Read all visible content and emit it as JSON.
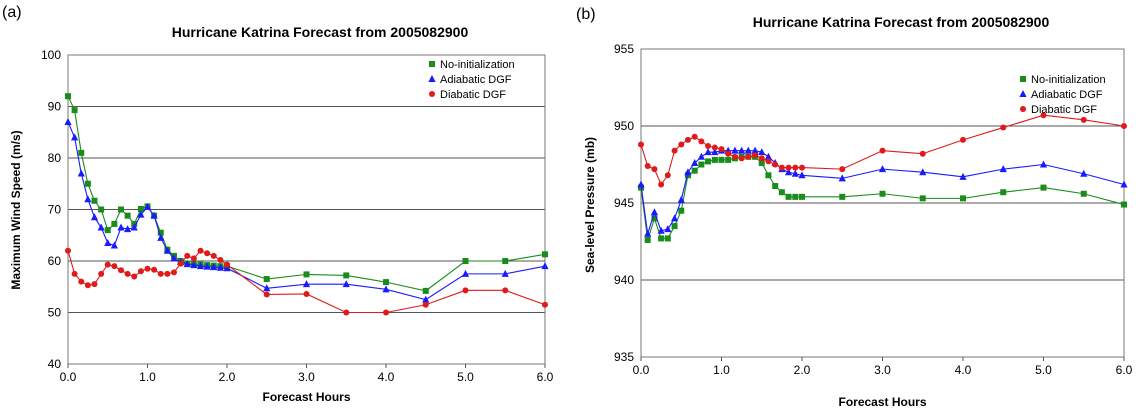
{
  "chart_data": [
    {
      "type": "line",
      "panel_label": "(a)",
      "title": "Hurricane Katrina Forecast from 2005082900",
      "xlabel": "Forecast Hours",
      "ylabel": "Maximum Wind Speed (m/s)",
      "xlim": [
        0,
        6
      ],
      "ylim": [
        40,
        100
      ],
      "x_ticks": [
        0,
        1,
        2,
        3,
        4,
        5,
        6
      ],
      "x_tick_labels": [
        "0.0",
        "1.0",
        "2.0",
        "3.0",
        "4.0",
        "5.0",
        "6.0"
      ],
      "y_ticks": [
        40,
        50,
        60,
        70,
        80,
        90,
        100
      ],
      "y_tick_labels": [
        "40",
        "50",
        "60",
        "70",
        "80",
        "90",
        "100"
      ],
      "grid": "horizontal",
      "legend_position": "top-right",
      "series": [
        {
          "name": "No-initialization",
          "color": "#1a8c1a",
          "marker": "square",
          "x": [
            0,
            0.083,
            0.167,
            0.25,
            0.333,
            0.417,
            0.5,
            0.583,
            0.667,
            0.75,
            0.833,
            0.917,
            1.0,
            1.083,
            1.167,
            1.25,
            1.333,
            1.417,
            1.5,
            1.583,
            1.667,
            1.75,
            1.833,
            1.917,
            2.0,
            2.5,
            3.0,
            3.5,
            4.0,
            4.5,
            5.0,
            5.5,
            6.0
          ],
          "y": [
            92,
            89.3,
            81,
            75,
            71.7,
            70,
            66,
            67.2,
            70,
            68.8,
            67.2,
            70.1,
            70.6,
            68.8,
            65.5,
            62.2,
            61,
            60,
            59.5,
            59.4,
            59.3,
            59.2,
            59.1,
            59.0,
            59.0,
            56.5,
            57.4,
            57.2,
            55.9,
            54.2,
            60.0,
            60.0,
            61.3
          ]
        },
        {
          "name": "Adiabatic DGF",
          "color": "#1a1aff",
          "marker": "triangle",
          "x": [
            0,
            0.083,
            0.167,
            0.25,
            0.333,
            0.417,
            0.5,
            0.583,
            0.667,
            0.75,
            0.833,
            0.917,
            1.0,
            1.083,
            1.167,
            1.25,
            1.333,
            1.417,
            1.5,
            1.583,
            1.667,
            1.75,
            1.833,
            1.917,
            2.0,
            2.5,
            3.0,
            3.5,
            4.0,
            4.5,
            5.0,
            5.5,
            6.0
          ],
          "y": [
            87,
            84,
            77,
            72,
            68.5,
            66.5,
            63.5,
            63,
            66.5,
            66.2,
            66.5,
            69,
            70.5,
            68.8,
            64.5,
            62,
            60.5,
            59.8,
            59.4,
            59.2,
            59.0,
            58.9,
            58.8,
            58.7,
            58.6,
            54.7,
            55.5,
            55.5,
            54.5,
            52.5,
            57.5,
            57.5,
            59.0
          ]
        },
        {
          "name": "Diabatic DGF",
          "color": "#e01a1a",
          "marker": "circle",
          "x": [
            0,
            0.083,
            0.167,
            0.25,
            0.333,
            0.417,
            0.5,
            0.583,
            0.667,
            0.75,
            0.833,
            0.917,
            1.0,
            1.083,
            1.167,
            1.25,
            1.333,
            1.417,
            1.5,
            1.583,
            1.667,
            1.75,
            1.833,
            1.917,
            2.0,
            2.5,
            3.0,
            3.5,
            4.0,
            4.5,
            5.0,
            5.5,
            6.0
          ],
          "y": [
            62,
            57.5,
            56,
            55.3,
            55.5,
            57.5,
            59.3,
            59,
            58.2,
            57.5,
            57,
            58,
            58.5,
            58.3,
            57.5,
            57.5,
            57.8,
            59.5,
            61,
            60.5,
            62,
            61.5,
            61,
            60.2,
            59.3,
            53.5,
            53.6,
            50,
            50,
            51.5,
            54.3,
            54.3,
            51.5
          ]
        }
      ]
    },
    {
      "type": "line",
      "panel_label": "(b)",
      "title": "Hurricane Katrina Forecast from 2005082900",
      "xlabel": "Forecast Hours",
      "ylabel": "Sea-level Pressure (mb)",
      "xlim": [
        0,
        6
      ],
      "ylim": [
        935,
        955
      ],
      "x_ticks": [
        0,
        1,
        2,
        3,
        4,
        5,
        6
      ],
      "x_tick_labels": [
        "0.0",
        "1.0",
        "2.0",
        "3.0",
        "4.0",
        "5.0",
        "6.0"
      ],
      "y_ticks": [
        935,
        940,
        945,
        950,
        955
      ],
      "y_tick_labels": [
        "935",
        "940",
        "945",
        "950",
        "955"
      ],
      "grid": "horizontal",
      "legend_position": "top-right",
      "series": [
        {
          "name": "No-initialization",
          "color": "#1a8c1a",
          "marker": "square",
          "x": [
            0,
            0.083,
            0.167,
            0.25,
            0.333,
            0.417,
            0.5,
            0.583,
            0.667,
            0.75,
            0.833,
            0.917,
            1.0,
            1.083,
            1.167,
            1.25,
            1.333,
            1.417,
            1.5,
            1.583,
            1.667,
            1.75,
            1.833,
            1.917,
            2.0,
            2.5,
            3.0,
            3.5,
            4.0,
            4.5,
            5.0,
            5.5,
            6.0
          ],
          "y": [
            946.0,
            942.6,
            944.0,
            942.7,
            942.7,
            943.5,
            944.5,
            946.8,
            947.1,
            947.5,
            947.7,
            947.8,
            947.8,
            947.8,
            947.9,
            948.0,
            948.0,
            948.0,
            947.6,
            946.8,
            946.1,
            945.7,
            945.4,
            945.4,
            945.4,
            945.4,
            945.6,
            945.3,
            945.3,
            945.7,
            946.0,
            945.6,
            944.9
          ]
        },
        {
          "name": "Adiabatic DGF",
          "color": "#1a1aff",
          "marker": "triangle",
          "x": [
            0,
            0.083,
            0.167,
            0.25,
            0.333,
            0.417,
            0.5,
            0.583,
            0.667,
            0.75,
            0.833,
            0.917,
            1.0,
            1.083,
            1.167,
            1.25,
            1.333,
            1.417,
            1.5,
            1.583,
            1.667,
            1.75,
            1.833,
            1.917,
            2.0,
            2.5,
            3.0,
            3.5,
            4.0,
            4.5,
            5.0,
            5.5,
            6.0
          ],
          "y": [
            946.2,
            943.0,
            944.4,
            943.2,
            943.3,
            944.0,
            945.2,
            947.0,
            947.6,
            948.0,
            948.3,
            948.3,
            948.4,
            948.4,
            948.4,
            948.4,
            948.4,
            948.4,
            948.3,
            948.0,
            947.6,
            947.2,
            947.0,
            946.9,
            946.8,
            946.6,
            947.2,
            947.0,
            946.7,
            947.2,
            947.5,
            946.9,
            946.2
          ]
        },
        {
          "name": "Diabatic DGF",
          "color": "#e01a1a",
          "marker": "circle",
          "x": [
            0,
            0.083,
            0.167,
            0.25,
            0.333,
            0.417,
            0.5,
            0.583,
            0.667,
            0.75,
            0.833,
            0.917,
            1.0,
            1.083,
            1.167,
            1.25,
            1.333,
            1.417,
            1.5,
            1.583,
            1.667,
            1.75,
            1.833,
            1.917,
            2.0,
            2.5,
            3.0,
            3.5,
            4.0,
            4.5,
            5.0,
            5.5,
            6.0
          ],
          "y": [
            948.8,
            947.4,
            947.2,
            946.2,
            946.8,
            948.4,
            948.8,
            949.1,
            949.3,
            949.0,
            948.7,
            948.6,
            948.5,
            948.2,
            948.0,
            947.9,
            948.0,
            948.1,
            947.9,
            947.7,
            947.5,
            947.3,
            947.3,
            947.3,
            947.3,
            947.2,
            948.4,
            948.2,
            949.1,
            949.9,
            950.7,
            950.4,
            950.0
          ]
        }
      ]
    }
  ]
}
